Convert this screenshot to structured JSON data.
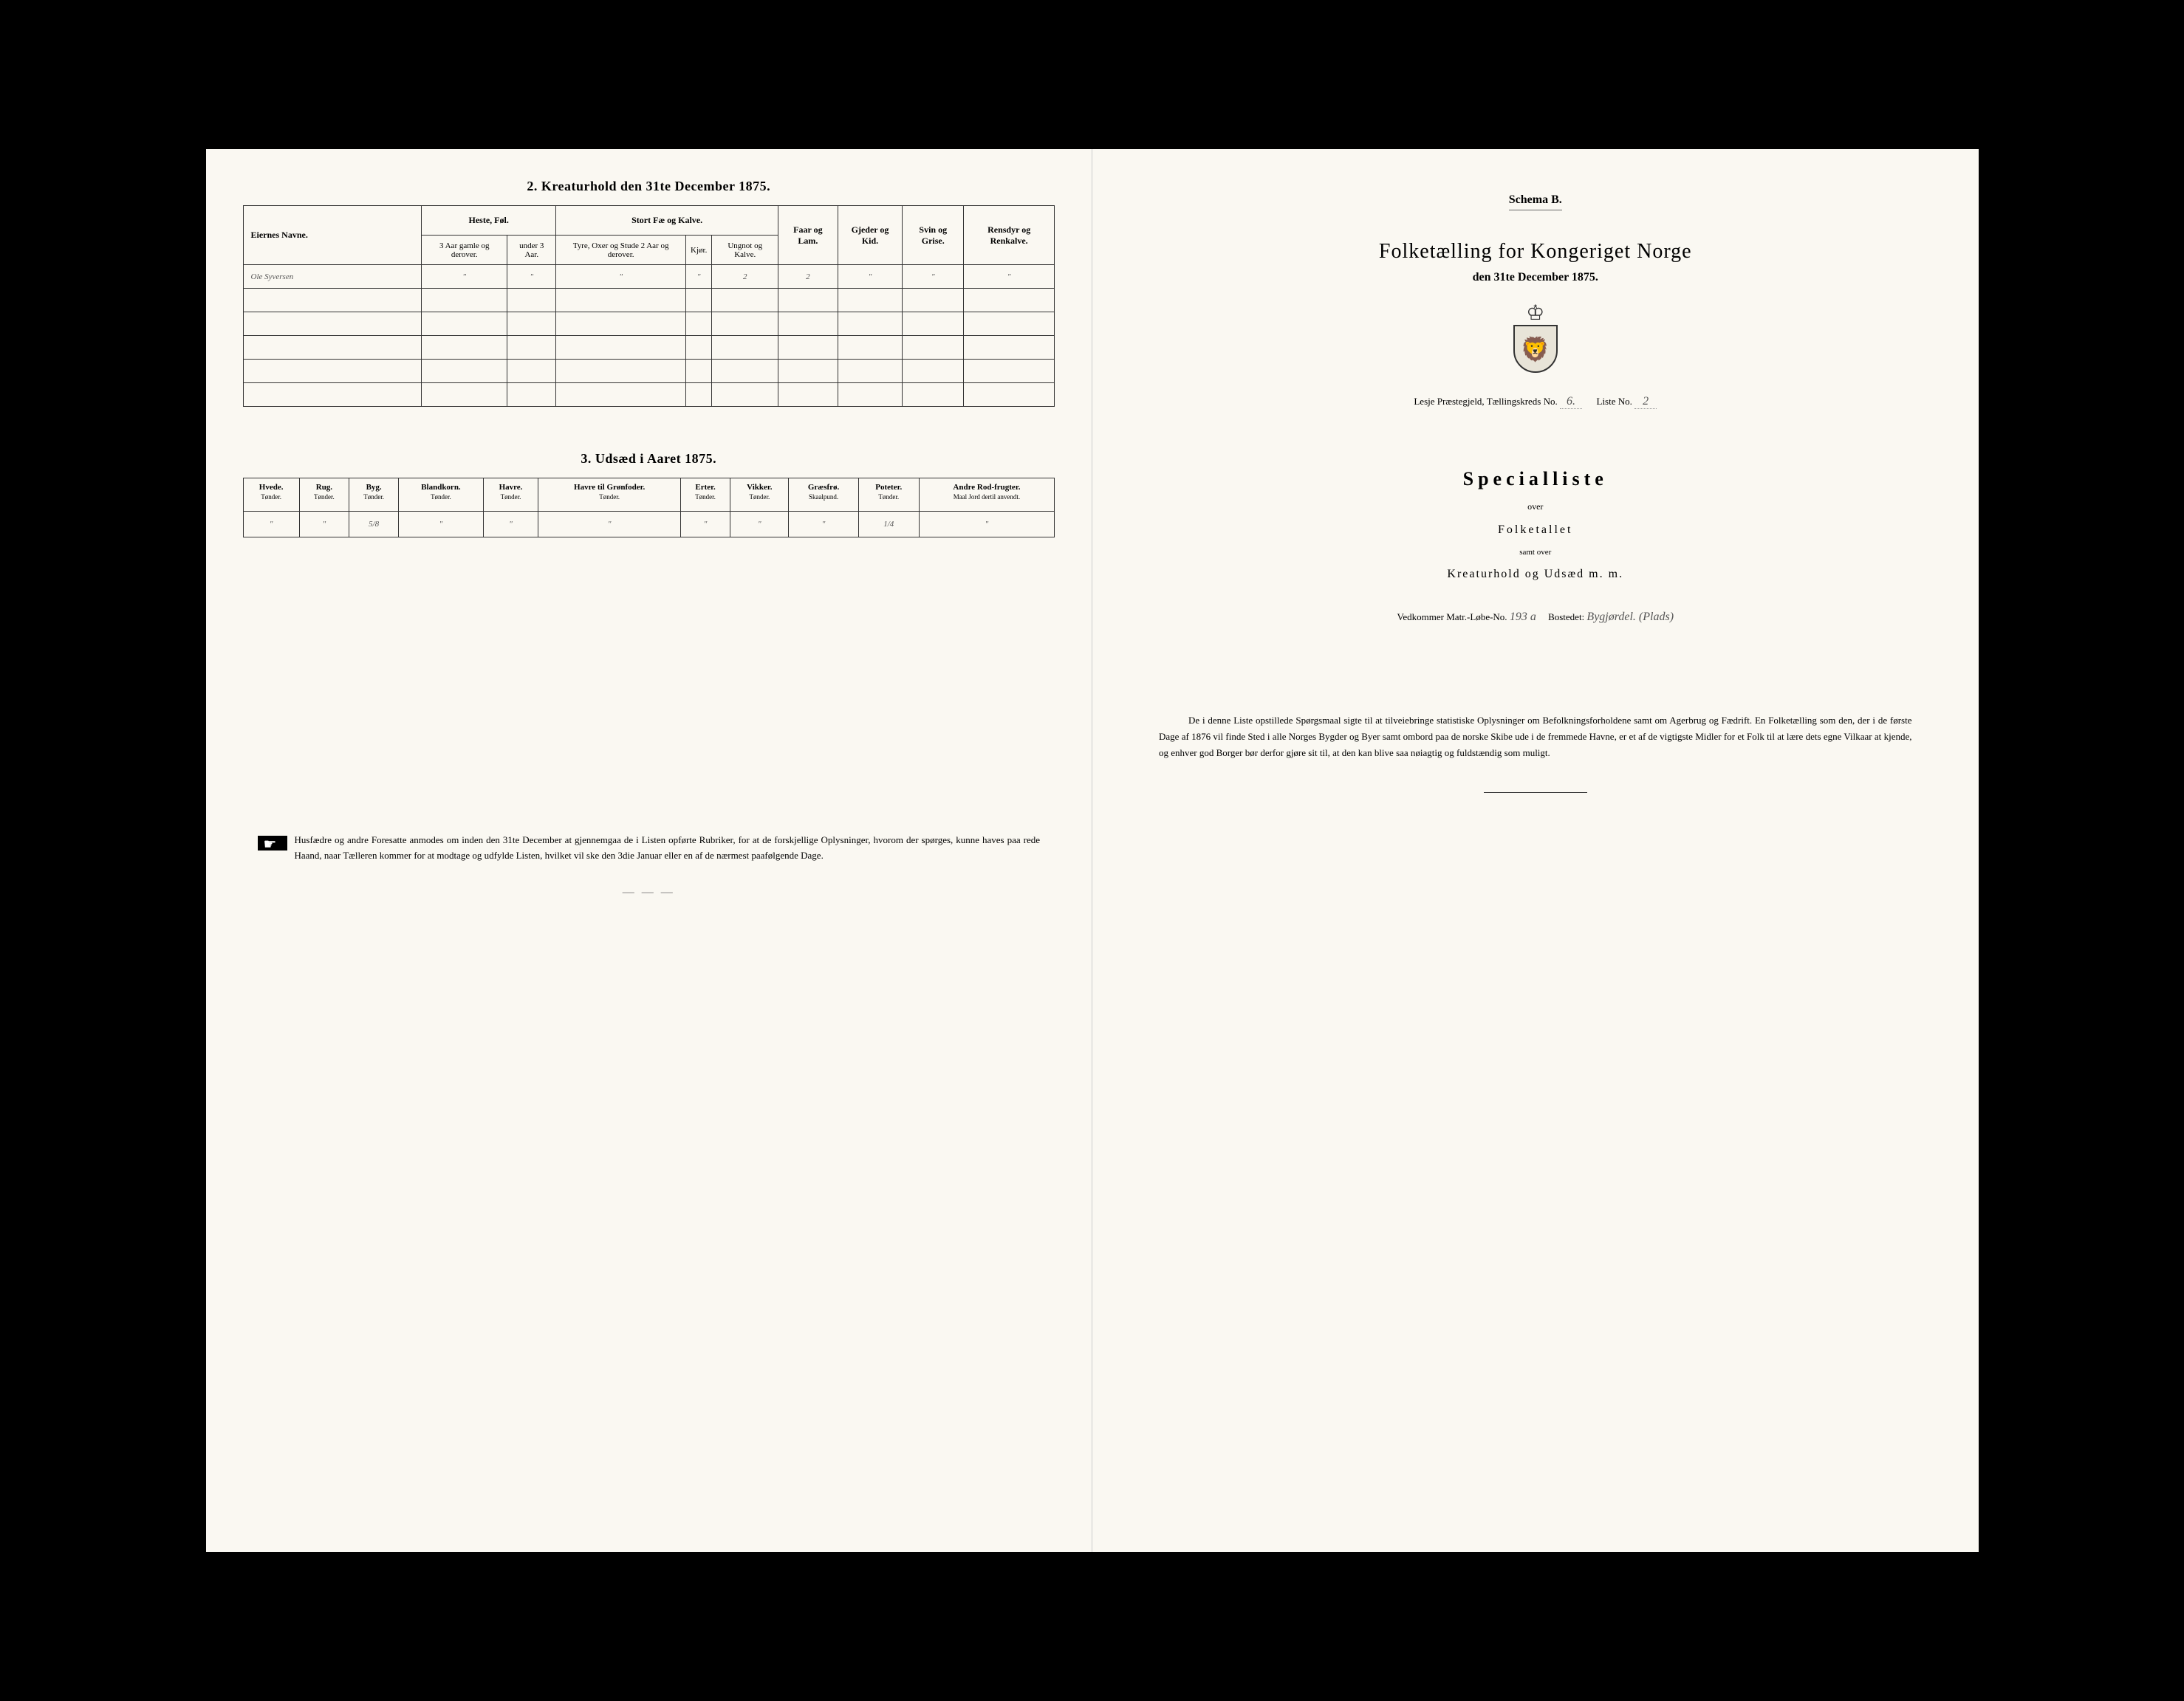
{
  "left_page": {
    "section2_title": "2. Kreaturhold den 31te December 1875.",
    "table2": {
      "headers": {
        "owner": "Eiernes Navne.",
        "horse_group": "Heste, Føl.",
        "horse_old": "3 Aar gamle og derover.",
        "horse_young": "under 3 Aar.",
        "cattle_group": "Stort Fæ og Kalve.",
        "cattle_bulls": "Tyre, Oxer og Stude 2 Aar og derover.",
        "cattle_cows": "Kjør.",
        "cattle_young": "Ungnot og Kalve.",
        "sheep": "Faar og Lam.",
        "goats": "Gjeder og Kid.",
        "pigs": "Svin og Grise.",
        "reindeer": "Rensdyr og Renkalve."
      },
      "row1": {
        "name": "Ole Syversen",
        "horse_old": "\"",
        "horse_young": "\"",
        "cattle_bulls": "\"",
        "cattle_cows": "\"",
        "cattle_young": "2",
        "sheep": "2",
        "goats": "\"",
        "pigs": "\"",
        "reindeer": "\""
      }
    },
    "section3_title": "3. Udsæd i Aaret 1875.",
    "table3": {
      "headers": {
        "wheat": "Hvede.",
        "rye": "Rug.",
        "barley": "Byg.",
        "mixed": "Blandkorn.",
        "oats": "Havre.",
        "oats_fodder": "Havre til Grønfoder.",
        "peas": "Erter.",
        "vetch": "Vikker.",
        "grass": "Græsfrø.",
        "potatoes": "Poteter.",
        "other": "Andre Rod-frugter.",
        "unit": "Tønder.",
        "unit_grass": "Skaalpund.",
        "unit_other": "Maal Jord dertil anvendt."
      },
      "row1": {
        "wheat": "\"",
        "rye": "\"",
        "barley": "5/8",
        "mixed": "\"",
        "oats": "\"",
        "oats_fodder": "\"",
        "peas": "\"",
        "vetch": "\"",
        "grass": "\"",
        "potatoes": "1/4",
        "other": "\""
      }
    },
    "footer_note": "Husfædre og andre Foresatte anmodes om inden den 31te December at gjennemgaa de i Listen opførte Rubriker, for at de forskjellige Oplysninger, hvorom der spørges, kunne haves paa rede Haand, naar Tælleren kommer for at modtage og udfylde Listen, hvilket vil ske den 3die Januar eller en af de nærmest paafølgende Dage."
  },
  "right_page": {
    "schema": "Schema B.",
    "main_title": "Folketælling for Kongeriget Norge",
    "sub_title": "den 31te December 1875.",
    "district_prefix": "Lesje Præstegjeld, Tællingskreds No.",
    "district_no": "6.",
    "liste_label": "Liste No.",
    "liste_no": "2",
    "specialliste": "Specialliste",
    "over": "over",
    "folketallet": "Folketallet",
    "samt_over": "samt over",
    "kreaturhold": "Kreaturhold og Udsæd m. m.",
    "vedkommer_prefix": "Vedkommer Matr.-Løbe-No.",
    "matr_no": "193 a",
    "bostedet_label": "Bostedet:",
    "bostedet": "Bygjørdel. (Plads)",
    "footer": "De i denne Liste opstillede Spørgsmaal sigte til at tilveiebringe statistiske Oplysninger om Befolkningsforholdene samt om Agerbrug og Fædrift. En Folketælling som den, der i de første Dage af 1876 vil finde Sted i alle Norges Bygder og Byer samt ombord paa de norske Skibe ude i de fremmede Havne, er et af de vigtigste Midler for et Folk til at lære dets egne Vilkaar at kjende, og enhver god Borger bør derfor gjøre sit til, at den kan blive saa nøiagtig og fuldstændig som muligt."
  }
}
